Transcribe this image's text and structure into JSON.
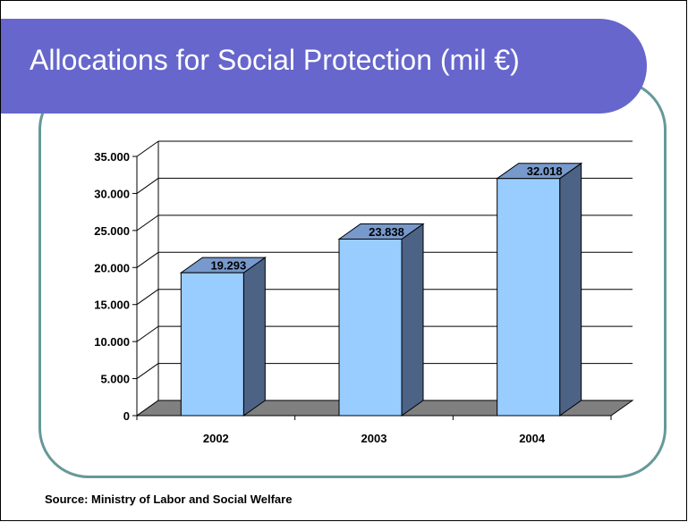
{
  "slide": {
    "title": "Allocations for Social Protection (mil €)",
    "source": "Source: Ministry of Labor and Social Welfare"
  },
  "colors": {
    "banner": "#6666cc",
    "frame": "#669999",
    "bar_front": "#99ccff",
    "bar_top": "#7799cc",
    "bar_side": "#4d6385",
    "floor": "#808080"
  },
  "chart_data": {
    "type": "bar",
    "title": "",
    "xlabel": "",
    "ylabel": "",
    "categories": [
      "2002",
      "2003",
      "2004"
    ],
    "values": [
      19293,
      23838,
      32018
    ],
    "value_labels": [
      "19.293",
      "23.838",
      "32.018"
    ],
    "ylim": [
      0,
      35000
    ],
    "yticks": [
      0,
      5000,
      10000,
      15000,
      20000,
      25000,
      30000,
      35000
    ],
    "ytick_labels": [
      "0",
      "5.000",
      "10.000",
      "15.000",
      "20.000",
      "25.000",
      "30.000",
      "35.000"
    ],
    "grid": true,
    "legend": "none",
    "style": "3d"
  }
}
